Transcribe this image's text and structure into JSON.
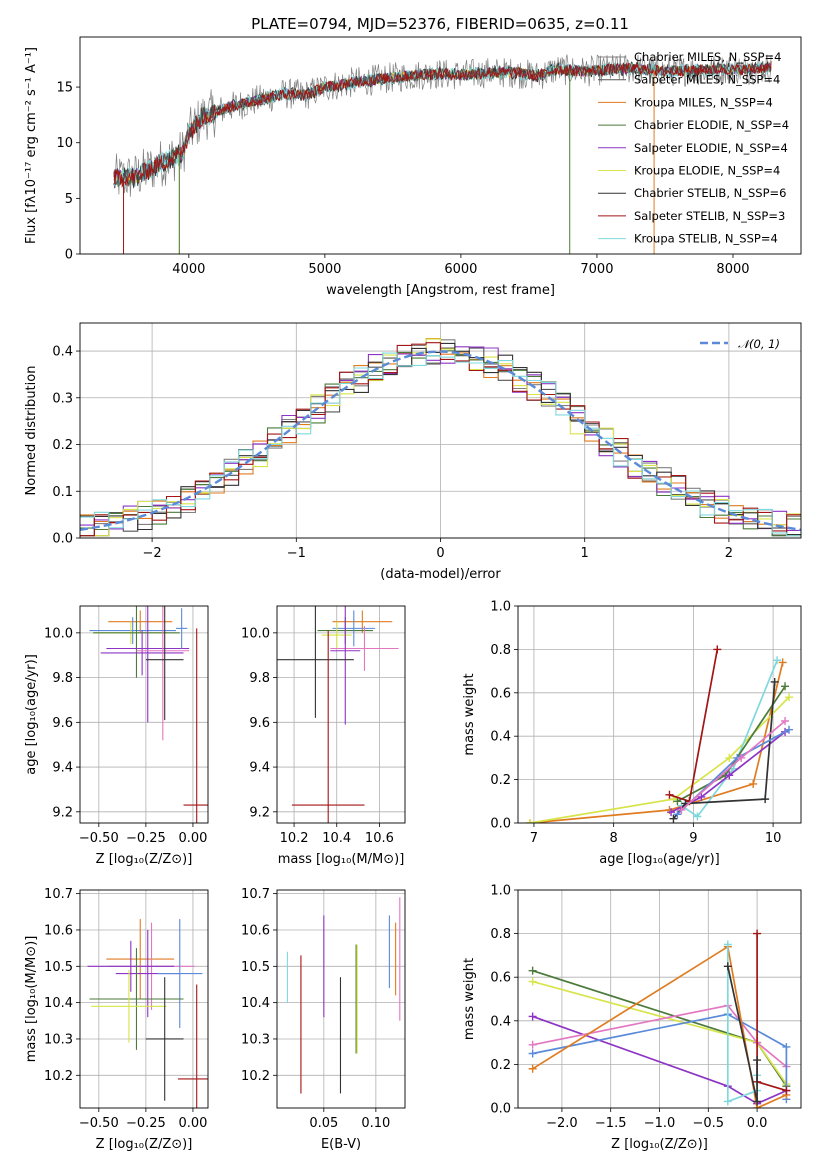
{
  "figure_title": "PLATE=0794, MJD=52376, FIBERID=0635, z=0.11",
  "chart_data": [
    {
      "id": "spectrum",
      "type": "line",
      "xlabel": "wavelength [Angstrom, rest frame]",
      "ylabel": "Flux [fλ10⁻¹⁷ erg cm⁻² s⁻¹ A⁻¹]",
      "xlim": [
        3200,
        8500
      ],
      "ylim": [
        0,
        19.5
      ],
      "xticks": [
        "4000",
        "5000",
        "6000",
        "7000",
        "8000"
      ],
      "yticks": [
        "0",
        "5",
        "10",
        "15"
      ],
      "grid": false,
      "legend_position": "right",
      "envelope": {
        "x": [
          3450,
          3600,
          3800,
          3950,
          4000,
          4100,
          4300,
          4500,
          4700,
          4862,
          5000,
          5200,
          5400,
          5600,
          5800,
          6000,
          6200,
          6400,
          6564,
          6700,
          6900,
          7100,
          7300,
          7500,
          7700,
          7900,
          8100,
          8300
        ],
        "y": [
          6.8,
          6.9,
          8.2,
          9.0,
          10.8,
          12.3,
          13.2,
          13.8,
          14.4,
          14.3,
          15.0,
          15.4,
          15.7,
          16.0,
          16.2,
          16.1,
          16.3,
          16.3,
          16.0,
          16.6,
          16.4,
          16.6,
          16.7,
          16.4,
          16.5,
          16.6,
          16.6,
          16.8
        ]
      },
      "series": [
        {
          "name": "Chabrier MILES, N_SSP=4",
          "color": "#808080"
        },
        {
          "name": "Salpeter MILES, N_SSP=4",
          "color": "#555555"
        },
        {
          "name": "Kroupa MILES, N_SSP=4",
          "color": "#e07b20"
        },
        {
          "name": "Chabrier ELODIE, N_SSP=4",
          "color": "#4b7a3a"
        },
        {
          "name": "Salpeter ELODIE, N_SSP=4",
          "color": "#8e34c4"
        },
        {
          "name": "Kroupa ELODIE, N_SSP=4",
          "color": "#d7e44a"
        },
        {
          "name": "Chabrier STELIB, N_SSP=6",
          "color": "#333333"
        },
        {
          "name": "Salpeter STELIB, N_SSP=3",
          "color": "#a31515"
        },
        {
          "name": "Kroupa STELIB, N_SSP=4",
          "color": "#7fd8dc"
        }
      ]
    },
    {
      "id": "residual-hist",
      "type": "line",
      "xlabel": "(data-model)/error",
      "ylabel": "Normed distribution",
      "xlim": [
        -2.5,
        2.5
      ],
      "ylim": [
        0,
        0.46
      ],
      "xticks": [
        "−2",
        "−1",
        "0",
        "1",
        "2"
      ],
      "yticks": [
        "0.0",
        "0.1",
        "0.2",
        "0.3",
        "0.4"
      ],
      "grid": true,
      "legend_position": "top-right",
      "legend": "𝒩(0, 1)",
      "gaussian": {
        "mean": 0,
        "sigma": 1,
        "color": "#5a8ad8"
      },
      "bin_width": 0.1,
      "series_colors": [
        "#808080",
        "#555555",
        "#e07b20",
        "#4b7a3a",
        "#8e34c4",
        "#d7e44a",
        "#333333",
        "#a31515",
        "#7fd8dc"
      ]
    },
    {
      "id": "age-vs-Z",
      "type": "scatter",
      "xlabel": "Z [log₁₀(Z/Z⊙)]",
      "ylabel": "age [log₁₀(age/yr)]",
      "xlim": [
        -0.6,
        0.08
      ],
      "ylim": [
        9.15,
        10.12
      ],
      "xticks": [
        "−0.50",
        "−0.25",
        "0.00"
      ],
      "yticks": [
        "9.2",
        "9.4",
        "9.6",
        "9.8",
        "10.0"
      ],
      "grid": true,
      "points": [
        {
          "x": -0.28,
          "xerr": 0.17,
          "y": 10.05,
          "yerr": 0.05,
          "color": "#e07b20"
        },
        {
          "x": -0.32,
          "xerr": 0.23,
          "y": 10.01,
          "yerr": 0.06,
          "color": "#5a8ad8"
        },
        {
          "x": -0.33,
          "xerr": 0.2,
          "y": 10.0,
          "yerr": 0.05,
          "color": "#d7e44a"
        },
        {
          "x": -0.3,
          "xerr": 0.23,
          "y": 10.0,
          "yerr": 0.2,
          "color": "#4b7a3a"
        },
        {
          "x": -0.27,
          "xerr": 0.22,
          "y": 9.91,
          "yerr": 0.1,
          "color": "#8e34c4"
        },
        {
          "x": -0.24,
          "xerr": 0.22,
          "y": 9.93,
          "yerr": 0.33,
          "color": "#8e34c4"
        },
        {
          "x": -0.16,
          "xerr": 0.14,
          "y": 9.92,
          "yerr": 0.4,
          "color": "#e377c2"
        },
        {
          "x": -0.15,
          "xerr": 0.1,
          "y": 9.88,
          "yerr": 0.27,
          "color": "#333333"
        },
        {
          "x": 0.02,
          "xerr": 0.07,
          "y": 9.23,
          "yerr": 0.79,
          "color": "#a31515"
        },
        {
          "x": -0.06,
          "xerr": 0.03,
          "y": 10.02,
          "yerr": 0.09,
          "color": "#5a8ad8"
        }
      ]
    },
    {
      "id": "age-vs-mass",
      "type": "scatter",
      "xlabel": "mass [log₁₀(M/M⊙)]",
      "ylabel": "",
      "xlim": [
        10.12,
        10.72
      ],
      "ylim": [
        9.15,
        10.12
      ],
      "xticks": [
        "10.2",
        "10.4",
        "10.6"
      ],
      "yticks": [
        "9.2",
        "9.4",
        "9.6",
        "9.8",
        "10.0"
      ],
      "grid": true,
      "points": [
        {
          "x": 10.52,
          "xerr": 0.14,
          "y": 10.05,
          "yerr": 0.05,
          "color": "#e07b20"
        },
        {
          "x": 10.44,
          "xerr": 0.13,
          "y": 10.01,
          "yerr": 0.06,
          "color": "#4b7a3a"
        },
        {
          "x": 10.48,
          "xerr": 0.1,
          "y": 10.02,
          "yerr": 0.08,
          "color": "#5a8ad8"
        },
        {
          "x": 10.4,
          "xerr": 0.07,
          "y": 9.99,
          "yerr": 0.06,
          "color": "#d7e44a"
        },
        {
          "x": 10.53,
          "xerr": 0.16,
          "y": 9.93,
          "yerr": 0.1,
          "color": "#e377c2"
        },
        {
          "x": 10.44,
          "xerr": 0.07,
          "y": 9.92,
          "yerr": 0.33,
          "color": "#8e34c4"
        },
        {
          "x": 10.3,
          "xerr": 0.18,
          "y": 9.88,
          "yerr": 0.26,
          "color": "#333333"
        },
        {
          "x": 10.36,
          "xerr": 0.17,
          "y": 9.23,
          "yerr": 0.78,
          "color": "#a31515"
        }
      ]
    },
    {
      "id": "mass-weight-vs-age",
      "type": "line",
      "xlabel": "age [log₁₀(age/yr)]",
      "ylabel": "mass weight",
      "xlim": [
        6.8,
        10.35
      ],
      "ylim": [
        0,
        1
      ],
      "xticks": [
        "7",
        "8",
        "9",
        "10"
      ],
      "yticks": [
        "0.0",
        "0.2",
        "0.4",
        "0.6",
        "0.8",
        "1.0"
      ],
      "grid": true,
      "series": [
        {
          "color": "#e07b20",
          "x": [
            6.95,
            8.7,
            9.75,
            10.12
          ],
          "y": [
            0.0,
            0.06,
            0.18,
            0.74
          ]
        },
        {
          "color": "#d7e44a",
          "x": [
            6.95,
            8.75,
            9.45,
            10.2
          ],
          "y": [
            0.0,
            0.11,
            0.3,
            0.58
          ]
        },
        {
          "color": "#7fd8dc",
          "x": [
            8.85,
            9.05,
            9.5,
            10.05
          ],
          "y": [
            0.08,
            0.03,
            0.25,
            0.75
          ]
        },
        {
          "color": "#4b7a3a",
          "x": [
            8.8,
            9.4,
            10.15
          ],
          "y": [
            0.1,
            0.22,
            0.63
          ]
        },
        {
          "color": "#a31515",
          "x": [
            8.7,
            8.95,
            9.3
          ],
          "y": [
            0.13,
            0.1,
            0.8
          ]
        },
        {
          "color": "#8e34c4",
          "x": [
            8.72,
            9.1,
            9.45,
            10.15
          ],
          "y": [
            0.05,
            0.12,
            0.22,
            0.42
          ]
        },
        {
          "color": "#333333",
          "x": [
            8.75,
            8.9,
            9.9,
            10.02
          ],
          "y": [
            0.02,
            0.09,
            0.11,
            0.65
          ]
        },
        {
          "color": "#5a8ad8",
          "x": [
            8.8,
            9.55,
            10.2
          ],
          "y": [
            0.04,
            0.3,
            0.43
          ]
        },
        {
          "color": "#e377c2",
          "x": [
            8.85,
            9.6,
            10.15
          ],
          "y": [
            0.06,
            0.3,
            0.47
          ]
        }
      ]
    },
    {
      "id": "mass-vs-Z",
      "type": "scatter",
      "xlabel": "Z [log₁₀(Z/Z⊙)]",
      "ylabel": "mass [log₁₀(M/M⊙)]",
      "xlim": [
        -0.6,
        0.08
      ],
      "ylim": [
        10.11,
        10.71
      ],
      "xticks": [
        "−0.50",
        "−0.25",
        "0.00"
      ],
      "yticks": [
        "10.2",
        "10.3",
        "10.4",
        "10.5",
        "10.6",
        "10.7"
      ],
      "grid": true,
      "points": [
        {
          "x": -0.28,
          "xerr": 0.18,
          "y": 10.52,
          "yerr": 0.11,
          "color": "#e07b20"
        },
        {
          "x": -0.22,
          "xerr": 0.23,
          "y": 10.5,
          "yerr": 0.12,
          "color": "#e377c2"
        },
        {
          "x": -0.33,
          "xerr": 0.23,
          "y": 10.5,
          "yerr": 0.07,
          "color": "#8e34c4"
        },
        {
          "x": -0.24,
          "xerr": 0.17,
          "y": 10.48,
          "yerr": 0.12,
          "color": "#8e34c4"
        },
        {
          "x": -0.07,
          "xerr": 0.12,
          "y": 10.48,
          "yerr": 0.15,
          "color": "#5a8ad8"
        },
        {
          "x": -0.3,
          "xerr": 0.25,
          "y": 10.41,
          "yerr": 0.14,
          "color": "#4b7a3a"
        },
        {
          "x": -0.34,
          "xerr": 0.2,
          "y": 10.39,
          "yerr": 0.1,
          "color": "#d7e44a"
        },
        {
          "x": -0.15,
          "xerr": 0.1,
          "y": 10.3,
          "yerr": 0.17,
          "color": "#333333"
        },
        {
          "x": 0.02,
          "xerr": 0.1,
          "y": 10.19,
          "yerr": 0.26,
          "color": "#a31515"
        }
      ]
    },
    {
      "id": "mass-vs-EBV",
      "type": "scatter",
      "xlabel": "E(B-V)",
      "ylabel": "",
      "xlim": [
        0.005,
        0.128
      ],
      "ylim": [
        10.11,
        10.71
      ],
      "xticks": [
        "0.05",
        "0.10"
      ],
      "yticks": [
        "10.2",
        "10.3",
        "10.4",
        "10.5",
        "10.6",
        "10.7"
      ],
      "grid": true,
      "points": [
        {
          "x": 0.015,
          "y": 10.47,
          "yerr": 0.07,
          "color": "#7fd8dc"
        },
        {
          "x": 0.028,
          "y": 10.34,
          "yerr": 0.19,
          "color": "#a31515"
        },
        {
          "x": 0.05,
          "y": 10.5,
          "yerr": 0.14,
          "color": "#8e34c4"
        },
        {
          "x": 0.066,
          "y": 10.31,
          "yerr": 0.16,
          "color": "#333333"
        },
        {
          "x": 0.081,
          "y": 10.41,
          "yerr": 0.15,
          "color": "#4b7a3a"
        },
        {
          "x": 0.082,
          "y": 10.41,
          "yerr": 0.15,
          "color": "#d7e44a"
        },
        {
          "x": 0.113,
          "y": 10.54,
          "yerr": 0.1,
          "color": "#5a8ad8"
        },
        {
          "x": 0.119,
          "y": 10.52,
          "yerr": 0.1,
          "color": "#e07b20"
        },
        {
          "x": 0.123,
          "y": 10.52,
          "yerr": 0.17,
          "color": "#e377c2"
        }
      ]
    },
    {
      "id": "mass-weight-vs-Z",
      "type": "line",
      "xlabel": "Z [log₁₀(Z/Z⊙)]",
      "ylabel": "mass weight",
      "xlim": [
        -2.45,
        0.45
      ],
      "ylim": [
        0,
        1
      ],
      "xticks": [
        "−2.0",
        "−1.5",
        "−1.0",
        "−0.5",
        "0.0"
      ],
      "yticks": [
        "0.0",
        "0.2",
        "0.4",
        "0.6",
        "0.8",
        "1.0"
      ],
      "grid": true,
      "series": [
        {
          "color": "#4b7a3a",
          "x": [
            -2.3,
            0.0,
            0.3
          ],
          "y": [
            0.63,
            0.3,
            0.1
          ]
        },
        {
          "color": "#d7e44a",
          "x": [
            -2.3,
            0.0,
            0.3
          ],
          "y": [
            0.58,
            0.3,
            0.11
          ]
        },
        {
          "color": "#8e34c4",
          "x": [
            -2.3,
            -0.3,
            0.0,
            0.3
          ],
          "y": [
            0.42,
            0.1,
            0.02,
            0.08
          ]
        },
        {
          "color": "#e377c2",
          "x": [
            -2.3,
            -0.3,
            0.0,
            0.3
          ],
          "y": [
            0.29,
            0.47,
            0.3,
            0.19
          ]
        },
        {
          "color": "#5a8ad8",
          "x": [
            -2.3,
            -0.3,
            0.3,
            0.3
          ],
          "y": [
            0.25,
            0.43,
            0.28,
            0.04
          ]
        },
        {
          "color": "#e07b20",
          "x": [
            -2.3,
            -0.3,
            0.0,
            0.3
          ],
          "y": [
            0.18,
            0.74,
            0.0,
            0.06
          ]
        },
        {
          "color": "#7fd8dc",
          "x": [
            -0.3,
            -0.3,
            0.0,
            0.0
          ],
          "y": [
            0.75,
            0.03,
            0.08,
            0.15
          ]
        },
        {
          "color": "#a31515",
          "x": [
            0.0,
            0.0,
            0.3
          ],
          "y": [
            0.8,
            0.12,
            0.08
          ]
        },
        {
          "color": "#333333",
          "x": [
            -0.3,
            0.0,
            0.0
          ],
          "y": [
            0.65,
            0.03,
            0.22
          ]
        }
      ]
    }
  ]
}
